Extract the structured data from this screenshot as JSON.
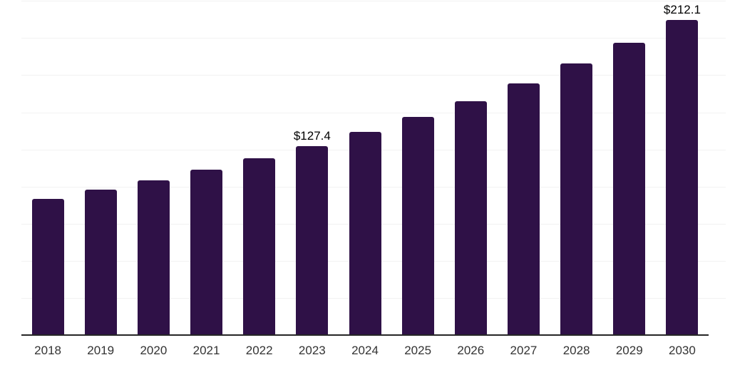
{
  "page": {
    "background_color": "#ffffff"
  },
  "chart_data": {
    "type": "bar",
    "title": "",
    "xlabel": "",
    "ylabel": "",
    "categories": [
      "2018",
      "2019",
      "2020",
      "2021",
      "2022",
      "2023",
      "2024",
      "2025",
      "2026",
      "2027",
      "2028",
      "2029",
      "2030"
    ],
    "values": [
      91.8,
      97.9,
      104.2,
      111.6,
      119.0,
      127.4,
      136.8,
      146.9,
      157.4,
      169.4,
      182.9,
      196.6,
      212.1
    ],
    "value_labels": [
      {
        "category": "2023",
        "text": "$127.4"
      },
      {
        "category": "2030",
        "text": "$212.1"
      }
    ],
    "ylim": [
      0,
      225.6
    ],
    "grid_step": 25,
    "grid": "horizontal-only",
    "legend": "none",
    "y_tick_labels_visible": false,
    "bar_color": "#2f1147",
    "gridline_color": "#f2f2f2",
    "axis_line_color": "#262626",
    "tick_label_color": "#333333",
    "value_label_color": "#000000"
  }
}
